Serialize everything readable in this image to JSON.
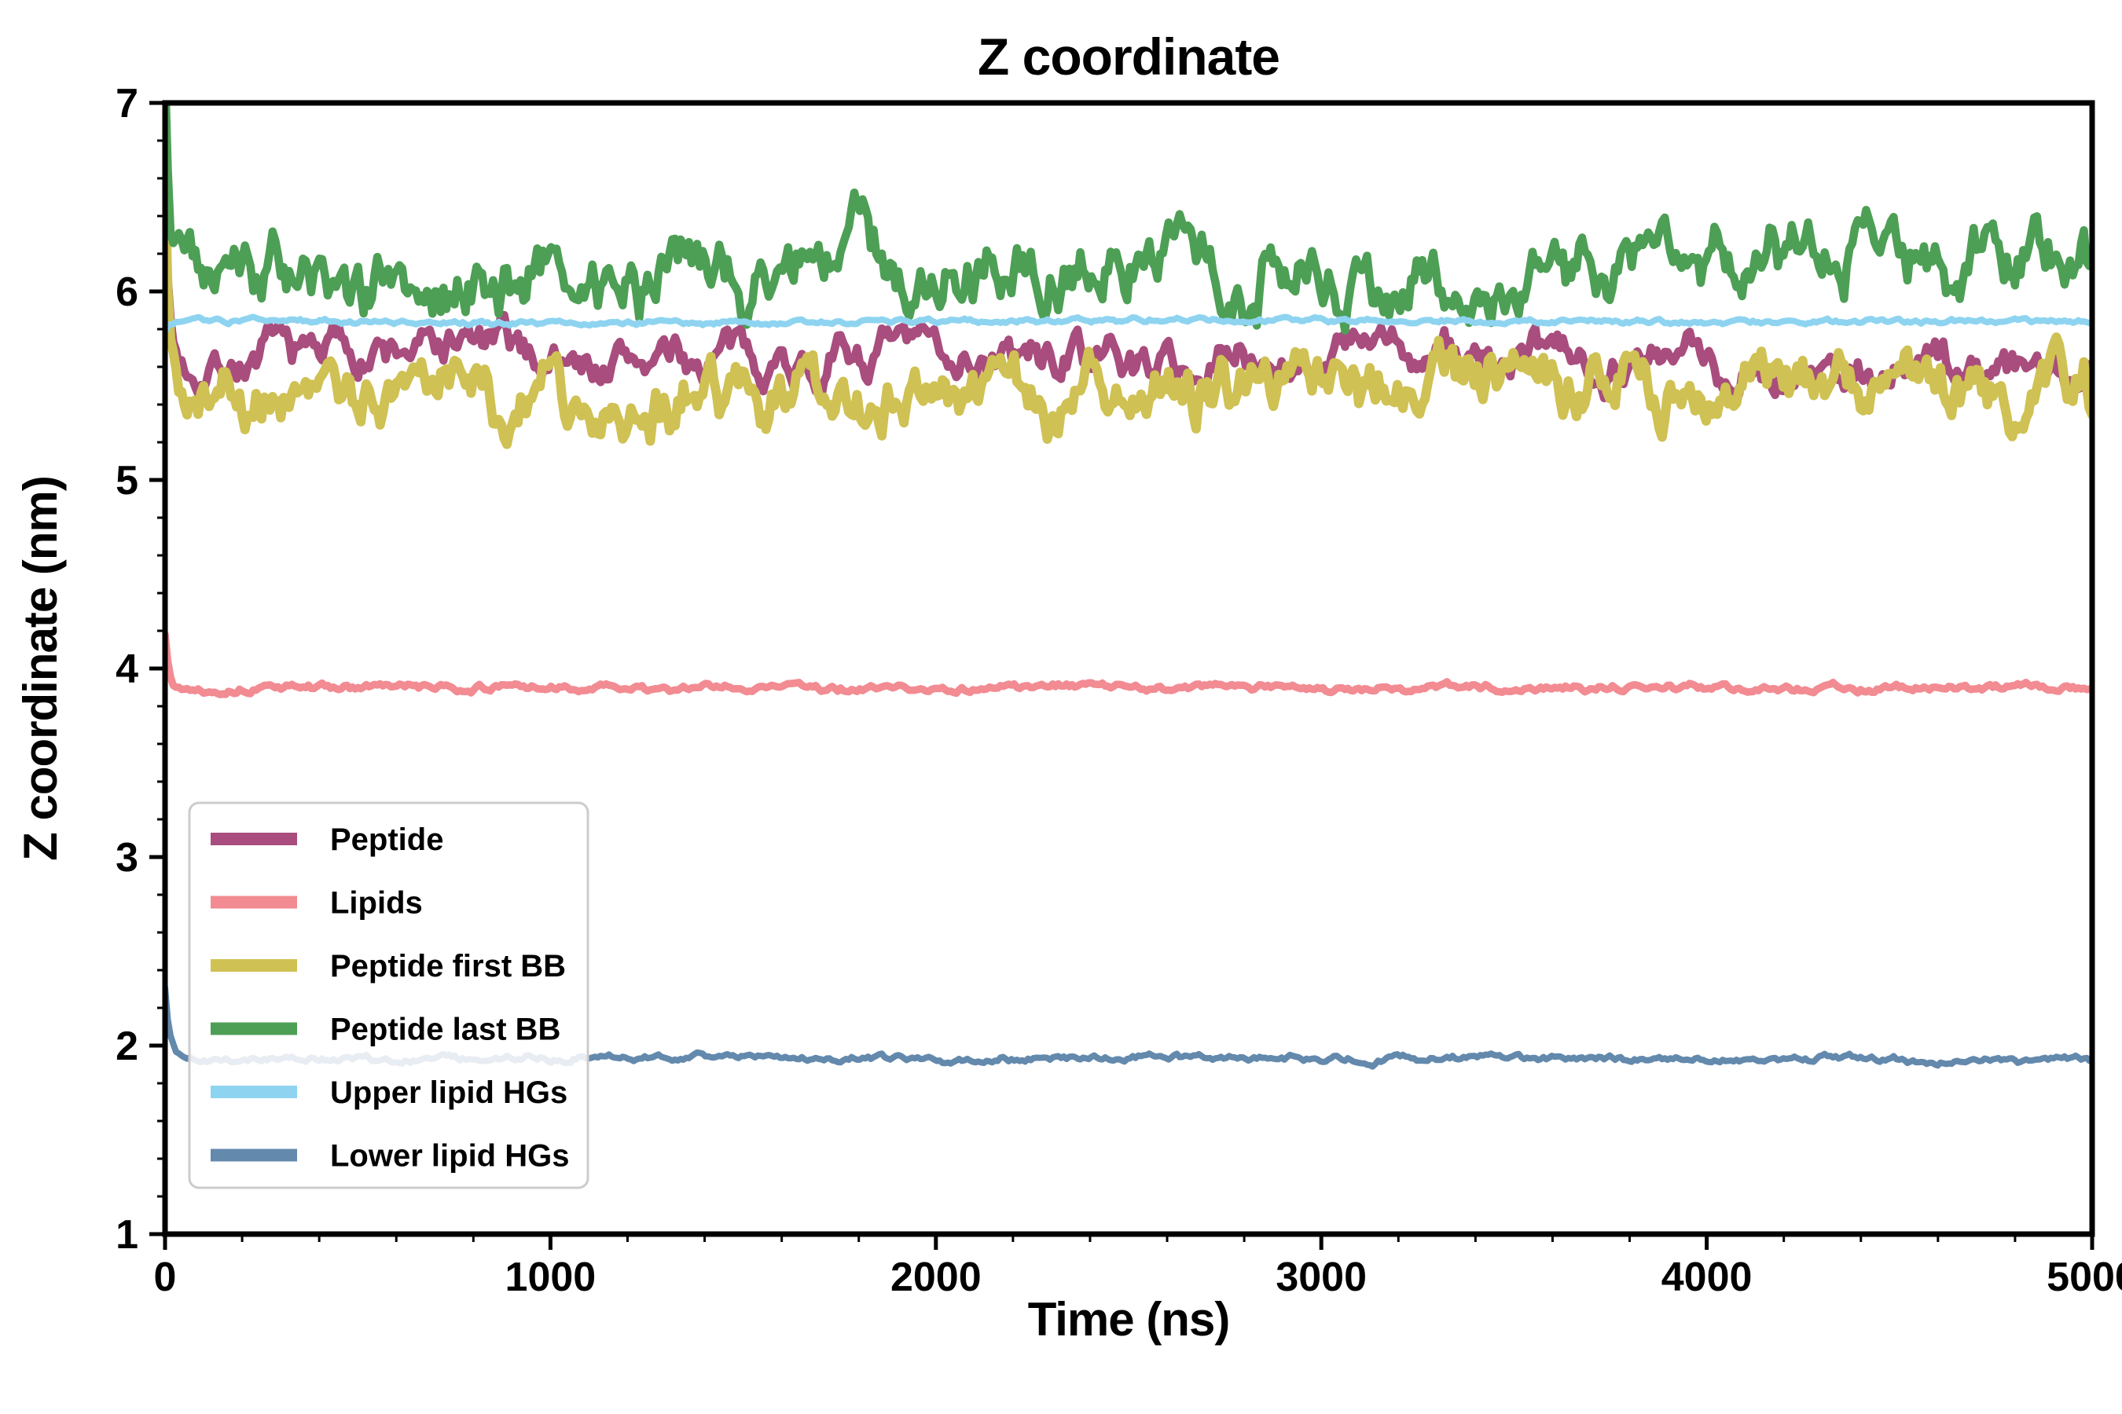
{
  "page": {
    "title": "Z coordinate"
  },
  "chart_data": {
    "type": "line",
    "title": "Z coordinate",
    "xlabel": "Time (ns)",
    "ylabel": "Z coordinate (nm)",
    "xlim": [
      0,
      5000
    ],
    "ylim": [
      1,
      7
    ],
    "x_ticks": [
      0,
      1000,
      2000,
      3000,
      4000,
      5000
    ],
    "y_ticks": [
      1,
      2,
      3,
      4,
      5,
      6,
      7
    ],
    "x_minor_step": 200,
    "y_minor_step": 0.2,
    "grid": false,
    "legend_position": "lower left",
    "axis_color": "#000000",
    "background_color": "#ffffff",
    "n_points": 700,
    "series": [
      {
        "name": "Peptide",
        "color": "#a84d7d",
        "linewidth": 10.5,
        "mean": 5.62,
        "noise": 0.075,
        "smooth": 0.8,
        "start": 6.45,
        "seed": 7
      },
      {
        "name": "Lipids",
        "color": "#f28b92",
        "linewidth": 9.5,
        "mean": 3.9,
        "noise": 0.013,
        "smooth": 0.75,
        "start": 4.18,
        "seed": 13
      },
      {
        "name": "Peptide first BB",
        "color": "#cfc153",
        "linewidth": 12,
        "mean": 5.46,
        "noise": 0.11,
        "smooth": 0.8,
        "start": 6.6,
        "seed": 21
      },
      {
        "name": "Peptide last BB",
        "color": "#4d9f55",
        "linewidth": 10.5,
        "mean": 6.13,
        "noise": 0.12,
        "smooth": 0.8,
        "start": 7.1,
        "seed": 5
      },
      {
        "name": "Upper lipid HGs",
        "color": "#8ed4f0",
        "linewidth": 8,
        "mean": 5.84,
        "noise": 0.009,
        "smooth": 0.75,
        "start": 5.78,
        "seed": 31
      },
      {
        "name": "Lower lipid HGs",
        "color": "#6389ad",
        "linewidth": 8,
        "mean": 1.93,
        "noise": 0.012,
        "smooth": 0.75,
        "start": 2.3,
        "seed": 41
      }
    ]
  }
}
